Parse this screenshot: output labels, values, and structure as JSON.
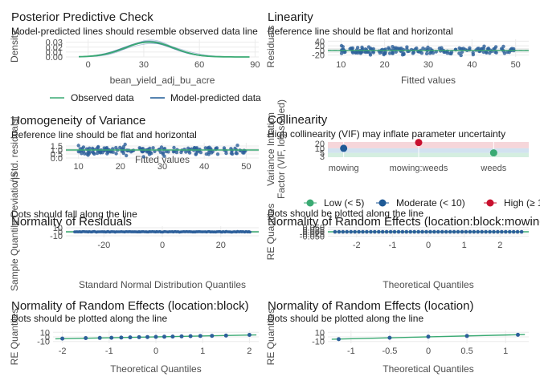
{
  "colors": {
    "green": "#3aaa73",
    "blue": "#1f5a96",
    "red": "#c8102e",
    "points": "#2c5f9a",
    "grid": "#ebebeb",
    "reference": "#b3b3b3"
  },
  "chart_data": [
    {
      "id": "ppc",
      "type": "line",
      "title": "Posterior Predictive Check",
      "subtitle": "Model-predicted lines should resemble observed data line",
      "xlabel": "bean_yield_adj_bu_acre",
      "ylabel": "Density",
      "xlim": [
        -12,
        92
      ],
      "ylim": [
        0,
        0.036
      ],
      "x_ticks": [
        0,
        30,
        60,
        90
      ],
      "y_ticks": [
        0.0,
        0.01,
        0.02,
        0.03
      ],
      "y_tick_labels": [
        "0.00",
        "0.01",
        "0.02",
        "0.03"
      ],
      "curve_mean": 33,
      "curve_sd": 13,
      "series": [
        {
          "name": "Observed data",
          "color": "#3aaa73"
        },
        {
          "name": "Model-predicted data",
          "color": "#1f5a96"
        }
      ],
      "legend": "bottom"
    },
    {
      "id": "linearity",
      "type": "scatter",
      "title": "Linearity",
      "subtitle": "Reference line should be flat and horizontal",
      "xlabel": "Fitted values",
      "ylabel": "Residuals",
      "xlim": [
        7,
        53
      ],
      "ylim": [
        -28,
        48
      ],
      "x_ticks": [
        10,
        20,
        30,
        40,
        50
      ],
      "y_ticks": [
        -20,
        0,
        20,
        40
      ],
      "y_tick_labels": [
        "-20",
        "0",
        "20",
        "40"
      ],
      "x_range": [
        10,
        50
      ],
      "y_spread": 14,
      "n_points": 170,
      "reference": 0
    },
    {
      "id": "homogeneity",
      "type": "scatter",
      "title": "Homogeneity of Variance",
      "subtitle": "Reference line should be flat and horizontal",
      "xlabel": "Fitted values",
      "ylabel": "√|Std. residuals|",
      "xlim": [
        7,
        53
      ],
      "ylim": [
        -0.1,
        1.9
      ],
      "x_ticks": [
        10,
        20,
        30,
        40,
        50
      ],
      "y_ticks": [
        0.0,
        0.5,
        1.0,
        1.5
      ],
      "y_tick_labels": [
        "0.0",
        "0.5",
        "1.0",
        "1.5"
      ],
      "x_range": [
        10,
        50
      ],
      "y_center": 0.95,
      "y_spread": 0.45,
      "n_points": 170,
      "reference": 1.0
    },
    {
      "id": "collinearity",
      "type": "scatter",
      "title": "Collinearity",
      "subtitle": "High collinearity (VIF) may inflate parameter uncertainty",
      "xlabel": "",
      "ylabel": "Variance Inflation\nFactor (VIF, log-scaled)",
      "categories": [
        "mowing",
        "mowing:weeds",
        "weeds"
      ],
      "values": [
        10,
        24,
        5
      ],
      "point_colors": [
        "#1f5a96",
        "#c8102e",
        "#3aaa73"
      ],
      "ylim": [
        2.6,
        26
      ],
      "y_ticks": [
        3,
        5,
        10,
        20
      ],
      "y_tick_labels": [
        "3",
        "5",
        "10",
        "20"
      ],
      "legend": "bottom",
      "legend_items": [
        {
          "name": "Low (< 5)",
          "color": "#3aaa73"
        },
        {
          "name": "Moderate (< 10)",
          "color": "#1f5a96"
        },
        {
          "name": "High (≥ 10)",
          "color": "#c8102e"
        }
      ]
    },
    {
      "id": "normality-residuals",
      "type": "scatter",
      "title": "Normality of Residuals",
      "subtitle": "Dots should fall along the line",
      "xlabel": "Standard Normal Distribution Quantiles",
      "ylabel": "Sample Quantile Deviations",
      "xlim": [
        -33,
        33
      ],
      "ylim": [
        -14,
        14
      ],
      "x_ticks": [
        -20,
        0,
        20
      ],
      "y_ticks": [
        -10,
        0,
        10
      ],
      "y_tick_labels": [
        "-10",
        "0",
        "10"
      ],
      "x_range": [
        -30,
        30
      ],
      "n_points": 170
    },
    {
      "id": "re-location-block-mowing",
      "type": "scatter",
      "title": "Normality of Random Effects (location:block:mowing)",
      "subtitle": "Dots should be plotted along the line",
      "xlabel": "Theoretical Quantiles",
      "ylabel": "RE Quantiles",
      "xlim": [
        -2.8,
        2.8
      ],
      "ylim": [
        -0.065,
        0.065
      ],
      "x_ticks": [
        -2,
        -1,
        0,
        1,
        2
      ],
      "y_ticks": [
        -0.05,
        -0.025,
        0.0,
        0.025,
        0.05
      ],
      "y_tick_labels": [
        "-0.050",
        "-0.025",
        "0.000",
        "0.025",
        "0.050"
      ],
      "x_range": [
        -2.6,
        2.6
      ],
      "n_points": 48
    },
    {
      "id": "re-location-block",
      "type": "scatter",
      "title": "Normality of Random Effects (location:block)",
      "subtitle": "Dots should be plotted along the line",
      "xlabel": "Theoretical Quantiles",
      "ylabel": "RE Quantiles",
      "xlim": [
        -2.2,
        2.2
      ],
      "ylim": [
        -14,
        14
      ],
      "x_ticks": [
        -2,
        -1,
        0,
        1,
        2
      ],
      "y_ticks": [
        -10,
        0,
        10
      ],
      "y_tick_labels": [
        "-10",
        "0",
        "10"
      ],
      "x": [
        -2.0,
        -1.5,
        -1.2,
        -0.95,
        -0.74,
        -0.55,
        -0.36,
        -0.18,
        0.0,
        0.18,
        0.36,
        0.55,
        0.74,
        0.95,
        1.2,
        1.5,
        2.0
      ],
      "y": [
        -3.6,
        -2.6,
        -2.2,
        -1.9,
        -1.5,
        -1.1,
        -0.7,
        -0.3,
        0.0,
        0.3,
        0.7,
        1.1,
        1.5,
        1.9,
        2.3,
        2.8,
        4.3
      ]
    },
    {
      "id": "re-location",
      "type": "scatter",
      "title": "Normality of Random Effects (location)",
      "subtitle": "Dots should be plotted along the line",
      "xlabel": "Theoretical Quantiles",
      "ylabel": "RE Quantiles",
      "xlim": [
        -1.3,
        1.3
      ],
      "ylim": [
        -14,
        14
      ],
      "x_ticks": [
        -1.0,
        -0.5,
        0.0,
        0.5,
        1.0
      ],
      "y_ticks": [
        -10,
        0,
        10
      ],
      "y_tick_labels": [
        "-10",
        "0",
        "10"
      ],
      "x": [
        -1.16,
        -0.5,
        0.0,
        0.5,
        1.16
      ],
      "y": [
        -5.0,
        -2.0,
        0.5,
        2.0,
        4.5
      ]
    }
  ]
}
